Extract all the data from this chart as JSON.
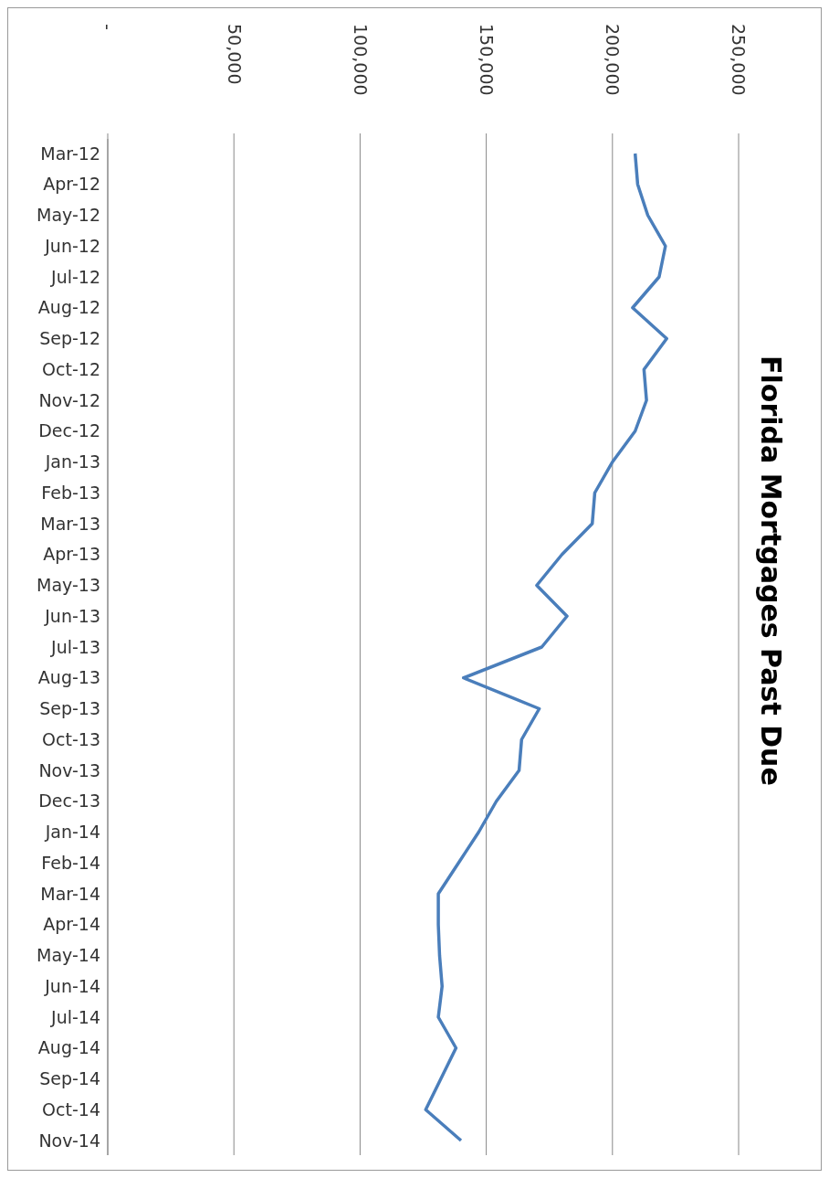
{
  "chart_data": {
    "type": "line",
    "orientation": "horizontal",
    "title": "Florida Mortgages Past Due",
    "categories": [
      "Mar-12",
      "Apr-12",
      "May-12",
      "Jun-12",
      "Jul-12",
      "Aug-12",
      "Sep-12",
      "Oct-12",
      "Nov-12",
      "Dec-12",
      "Jan-13",
      "Feb-13",
      "Mar-13",
      "Apr-13",
      "May-13",
      "Jun-13",
      "Jul-13",
      "Aug-13",
      "Sep-13",
      "Oct-13",
      "Nov-13",
      "Dec-13",
      "Jan-14",
      "Feb-14",
      "Mar-14",
      "Apr-14",
      "May-14",
      "Jun-14",
      "Jul-14",
      "Aug-14",
      "Sep-14",
      "Oct-14",
      "Nov-14"
    ],
    "series": [
      {
        "color": "#4a7ebb",
        "values": [
          209000,
          210000,
          214000,
          221000,
          218500,
          208000,
          221500,
          212500,
          213500,
          209000,
          200000,
          193000,
          192000,
          180000,
          170000,
          182000,
          172000,
          141000,
          171000,
          164000,
          163000,
          154000,
          147000,
          139000,
          131000,
          131000,
          131500,
          132500,
          131000,
          138000,
          132000,
          126000,
          140000
        ]
      }
    ],
    "xlim": [
      0,
      250000
    ],
    "xticks": [
      {
        "value": 0,
        "label": "-"
      },
      {
        "value": 50000,
        "label": "50,000"
      },
      {
        "value": 100000,
        "label": "100,000"
      },
      {
        "value": 150000,
        "label": "150,000"
      },
      {
        "value": 200000,
        "label": "200,000"
      },
      {
        "value": 250000,
        "label": "250,000"
      }
    ],
    "grid": "x",
    "legend": false
  }
}
